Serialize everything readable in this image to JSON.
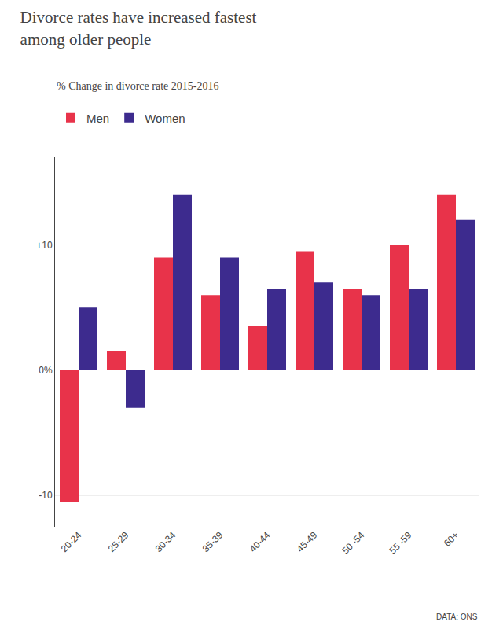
{
  "chart_data": {
    "type": "bar",
    "title": "Divorce rates have increased fastest\namong older people",
    "subtitle": "% Change in divorce rate 2015-2016",
    "categories": [
      "20-24",
      "25-29",
      "30-34",
      "35-39",
      "40-44",
      "45-49",
      "50 -54",
      "55 -59",
      "60+"
    ],
    "series": [
      {
        "name": "Men",
        "color": "#E8334A",
        "values": [
          -10.5,
          1.5,
          9.0,
          6.0,
          3.5,
          9.5,
          6.5,
          10.0,
          14.0
        ]
      },
      {
        "name": "Women",
        "color": "#3D2B8E",
        "values": [
          5.0,
          -3.0,
          14.0,
          9.0,
          6.5,
          7.0,
          6.0,
          6.5,
          12.0
        ]
      }
    ],
    "ylim": [
      -12.5,
      17
    ],
    "yticks": [
      -10,
      {
        "value": 0,
        "label": "0%"
      },
      {
        "value": 10,
        "label": "+10"
      }
    ],
    "grid": true,
    "legend": "upper left",
    "annotations": [
      "DATA: ONS"
    ]
  }
}
